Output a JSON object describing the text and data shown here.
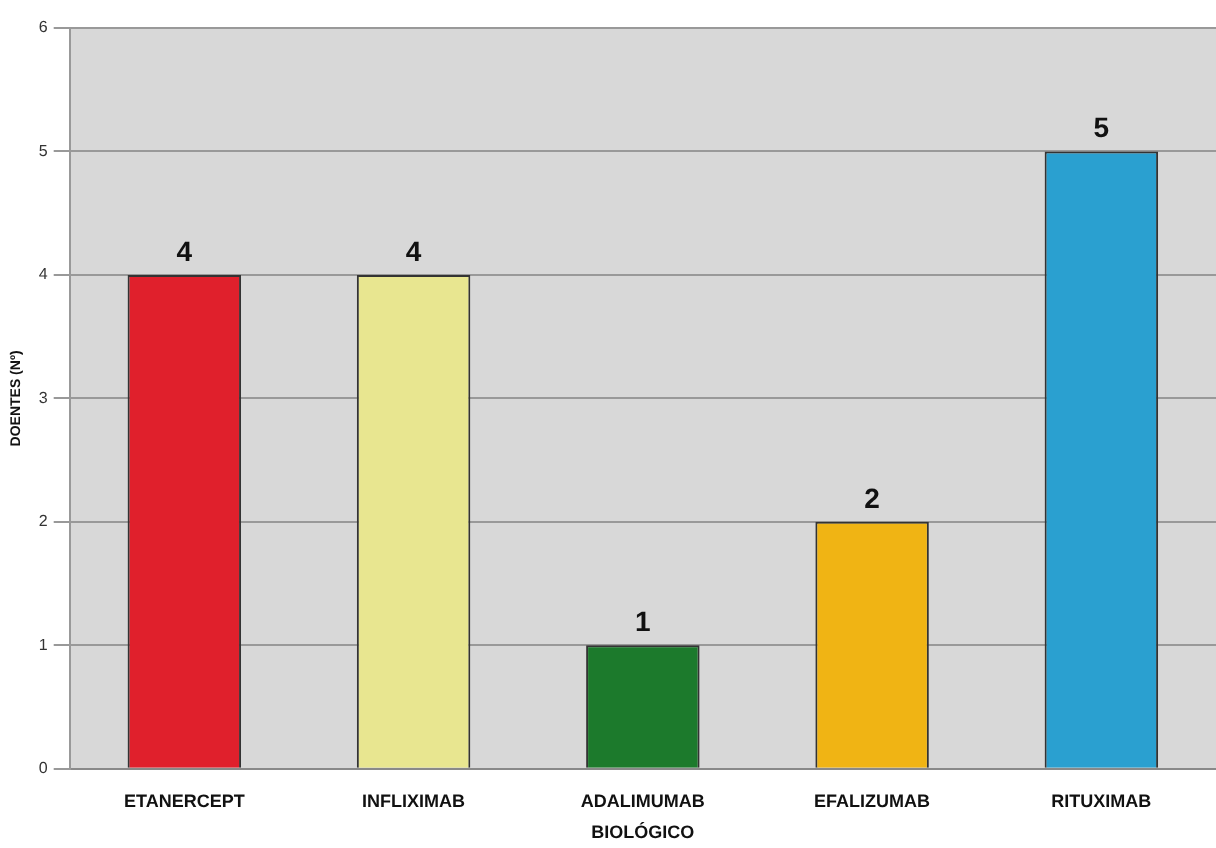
{
  "chart_data": {
    "type": "bar",
    "xlabel": "BIOLÓGICO",
    "ylabel": "DOENTES (Nº)",
    "categories": [
      "ETANERCEPT",
      "INFLIXIMAB",
      "ADALIMUMAB",
      "EFALIZUMAB",
      "RITUXIMAB"
    ],
    "values": [
      4,
      4,
      1,
      2,
      5
    ],
    "colors": [
      "#e0202c",
      "#e8e690",
      "#1c7a2c",
      "#f0b414",
      "#2aa0d0"
    ],
    "ylim": [
      0,
      6
    ],
    "yticks": [
      0,
      1,
      2,
      3,
      4,
      5,
      6
    ],
    "grid": "y",
    "data_labels": true,
    "legend": false
  }
}
